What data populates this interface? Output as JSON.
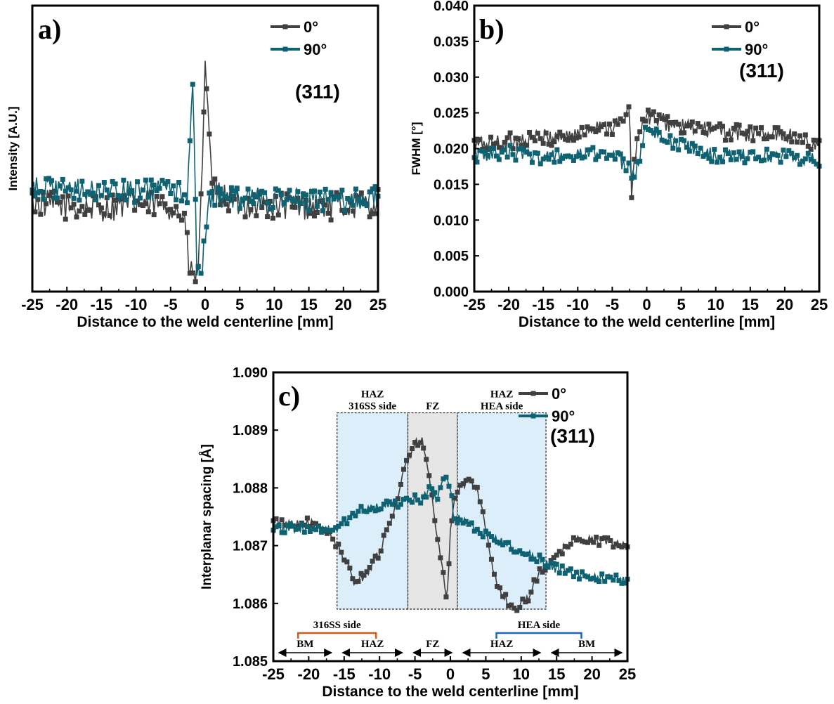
{
  "colors": {
    "series_0": "#404040",
    "series_90": "#0e6272",
    "haz_fill": "#dceefa",
    "fz_fill": "#e6e6e6",
    "bracket_316": "#d45a1e",
    "bracket_hea": "#1a68c0"
  },
  "panels": [
    {
      "label": "a)",
      "note": "(311)",
      "xlabel": "Distance to the weld centerline [mm]",
      "ylabel": "Intensity [A.U.]",
      "legend": [
        "0°",
        "90°"
      ],
      "xlim": [
        -25,
        25
      ],
      "xticks": [
        "-25",
        "-20",
        "-15",
        "-10",
        "-5",
        "0",
        "5",
        "10",
        "15",
        "20",
        "25"
      ],
      "ylim": [
        0,
        1
      ],
      "yticks": []
    },
    {
      "label": "b)",
      "note": "(311)",
      "xlabel": "Distance to the weld centerline [mm]",
      "ylabel": "FWHM [°]",
      "legend": [
        "0°",
        "90°"
      ],
      "xlim": [
        -25,
        25
      ],
      "xticks": [
        "-25",
        "-20",
        "-15",
        "-10",
        "-5",
        "0",
        "5",
        "10",
        "15",
        "20",
        "25"
      ],
      "ylim": [
        0,
        0.04
      ],
      "yticks": [
        "0.000",
        "0.005",
        "0.010",
        "0.015",
        "0.020",
        "0.025",
        "0.030",
        "0.035",
        "0.040"
      ]
    },
    {
      "label": "c)",
      "note": "(311)",
      "xlabel": "Distance to the weld centerline [mm]",
      "ylabel": "Interplanar spacing [Å]",
      "legend": [
        "0°",
        "90°"
      ],
      "xlim": [
        -25,
        25
      ],
      "xticks": [
        "-25",
        "-20",
        "-15",
        "-10",
        "-5",
        "0",
        "5",
        "10",
        "15",
        "20",
        "25"
      ],
      "ylim": [
        1.085,
        1.09
      ],
      "yticks": [
        "1.085",
        "1.086",
        "1.087",
        "1.088",
        "1.089",
        "1.090"
      ],
      "regions": [
        {
          "x0": -16,
          "x1": -6,
          "ymin": 1.0859,
          "ymax": 1.0893,
          "label1": "HAZ",
          "label2": "316SS side",
          "kind": "haz"
        },
        {
          "x0": -6,
          "x1": 1,
          "ymin": 1.0859,
          "ymax": 1.0893,
          "label1": "FZ",
          "label2": "",
          "kind": "fz"
        },
        {
          "x0": 1,
          "x1": 13.5,
          "ymin": 1.0859,
          "ymax": 1.0893,
          "label1": "HAZ",
          "label2": "HEA side",
          "kind": "haz"
        }
      ],
      "bottom_annotations": {
        "zones": [
          {
            "label": "BM",
            "x0": -25,
            "x1": -16
          },
          {
            "label": "HAZ",
            "x0": -16,
            "x1": -6
          },
          {
            "label": "FZ",
            "x0": -6,
            "x1": 1
          },
          {
            "label": "HAZ",
            "x0": 1,
            "x1": 13.5
          },
          {
            "label": "BM",
            "x0": 13.5,
            "x1": 25
          }
        ],
        "brackets": [
          {
            "label": "316SS side",
            "x0": -21.5,
            "x1": -10.5,
            "color": "#d45a1e"
          },
          {
            "label": "HEA side",
            "x0": 6.5,
            "x1": 18.5,
            "color": "#1a68c0"
          }
        ]
      }
    }
  ],
  "chart_data": [
    {
      "type": "scatter",
      "title": "",
      "xlabel": "Distance to the weld centerline [mm]",
      "ylabel": "Intensity [A.U.]",
      "xlim": [
        -25,
        25
      ],
      "ylim": [
        0,
        1
      ],
      "note": "Intensity axis has no tick labels; values are relative (0–1 of plotted range).",
      "series": [
        {
          "name": "0°",
          "trend": [
            [
              -25,
              0.31
            ],
            [
              -15,
              0.29
            ],
            [
              -10,
              0.31
            ],
            [
              -5,
              0.3
            ],
            [
              -3,
              0.26
            ],
            [
              -2.3,
              0.08
            ],
            [
              -1.5,
              0.04
            ],
            [
              -1,
              0.1
            ],
            [
              -0.5,
              0.35
            ],
            [
              0,
              0.84
            ],
            [
              0.5,
              0.55
            ],
            [
              1,
              0.35
            ],
            [
              5,
              0.31
            ],
            [
              10,
              0.3
            ],
            [
              15,
              0.3
            ],
            [
              20,
              0.3
            ],
            [
              25,
              0.31
            ]
          ],
          "noise": 0.05
        },
        {
          "name": "90°",
          "trend": [
            [
              -25,
              0.36
            ],
            [
              -15,
              0.35
            ],
            [
              -10,
              0.35
            ],
            [
              -5,
              0.36
            ],
            [
              -2.5,
              0.35
            ],
            [
              -1.8,
              0.76
            ],
            [
              -1.2,
              0.05
            ],
            [
              -0.6,
              0.05
            ],
            [
              0,
              0.2
            ],
            [
              0.5,
              0.33
            ],
            [
              5,
              0.33
            ],
            [
              10,
              0.32
            ],
            [
              15,
              0.32
            ],
            [
              20,
              0.32
            ],
            [
              25,
              0.33
            ]
          ],
          "noise": 0.04
        }
      ]
    },
    {
      "type": "scatter",
      "title": "",
      "xlabel": "Distance to the weld centerline [mm]",
      "ylabel": "FWHM [°]",
      "xlim": [
        -25,
        25
      ],
      "ylim": [
        0,
        0.04
      ],
      "series": [
        {
          "name": "0°",
          "trend": [
            [
              -25,
              0.0205
            ],
            [
              -20,
              0.021
            ],
            [
              -15,
              0.0215
            ],
            [
              -10,
              0.022
            ],
            [
              -7,
              0.0235
            ],
            [
              -5,
              0.023
            ],
            [
              -3,
              0.024
            ],
            [
              -2.5,
              0.0275
            ],
            [
              -2.2,
              0.013
            ],
            [
              -1.5,
              0.021
            ],
            [
              0,
              0.0245
            ],
            [
              5,
              0.023
            ],
            [
              10,
              0.0225
            ],
            [
              15,
              0.022
            ],
            [
              20,
              0.022
            ],
            [
              25,
              0.0205
            ]
          ],
          "noise": 0.0012
        },
        {
          "name": "90°",
          "trend": [
            [
              -25,
              0.019
            ],
            [
              -20,
              0.0195
            ],
            [
              -15,
              0.0188
            ],
            [
              -10,
              0.019
            ],
            [
              -5,
              0.0195
            ],
            [
              -2.5,
              0.017
            ],
            [
              -1.8,
              0.016
            ],
            [
              -1,
              0.019
            ],
            [
              0,
              0.0235
            ],
            [
              3,
              0.021
            ],
            [
              5,
              0.0205
            ],
            [
              10,
              0.019
            ],
            [
              15,
              0.019
            ],
            [
              20,
              0.019
            ],
            [
              25,
              0.0183
            ]
          ],
          "noise": 0.001
        }
      ]
    },
    {
      "type": "scatter",
      "title": "",
      "xlabel": "Distance to the weld centerline [mm]",
      "ylabel": "Interplanar spacing [Å]",
      "xlim": [
        -25,
        25
      ],
      "ylim": [
        1.085,
        1.09
      ],
      "series": [
        {
          "name": "0°",
          "trend": [
            [
              -25,
              1.0874
            ],
            [
              -20,
              1.0874
            ],
            [
              -17,
              1.0872
            ],
            [
              -15,
              1.0868
            ],
            [
              -13.5,
              1.08635
            ],
            [
              -12,
              1.0865
            ],
            [
              -10,
              1.0869
            ],
            [
              -8,
              1.0876
            ],
            [
              -6.5,
              1.0883
            ],
            [
              -5,
              1.0888
            ],
            [
              -4,
              1.0888
            ],
            [
              -3,
              1.0882
            ],
            [
              -2,
              1.0872
            ],
            [
              -1,
              1.0865
            ],
            [
              -0.5,
              1.086
            ],
            [
              0,
              1.0872
            ],
            [
              0.5,
              1.0878
            ],
            [
              1.5,
              1.088
            ],
            [
              3,
              1.08815
            ],
            [
              4,
              1.0879
            ],
            [
              5,
              1.0873
            ],
            [
              6,
              1.0866
            ],
            [
              7,
              1.0862
            ],
            [
              9,
              1.0859
            ],
            [
              11,
              1.0861
            ],
            [
              12,
              1.0864
            ],
            [
              13,
              1.0866
            ],
            [
              15,
              1.0868
            ],
            [
              17,
              1.0871
            ],
            [
              20,
              1.0871
            ],
            [
              25,
              1.087
            ]
          ],
          "noise": 8e-05
        },
        {
          "name": "90°",
          "trend": [
            [
              -25,
              1.0873
            ],
            [
              -20,
              1.0873
            ],
            [
              -16,
              1.0873
            ],
            [
              -13,
              1.0876
            ],
            [
              -10,
              1.0877
            ],
            [
              -8,
              1.0877
            ],
            [
              -6,
              1.0878
            ],
            [
              -4,
              1.0878
            ],
            [
              -3,
              1.088
            ],
            [
              -2,
              1.0878
            ],
            [
              -1,
              1.0882
            ],
            [
              0,
              1.088
            ],
            [
              0.5,
              1.0875
            ],
            [
              2,
              1.0874
            ],
            [
              5,
              1.0872
            ],
            [
              8,
              1.087
            ],
            [
              10,
              1.0869
            ],
            [
              12,
              1.0868
            ],
            [
              15,
              1.0866
            ],
            [
              18,
              1.0865
            ],
            [
              20,
              1.08645
            ],
            [
              25,
              1.0864
            ]
          ],
          "noise": 8e-05
        }
      ]
    }
  ]
}
